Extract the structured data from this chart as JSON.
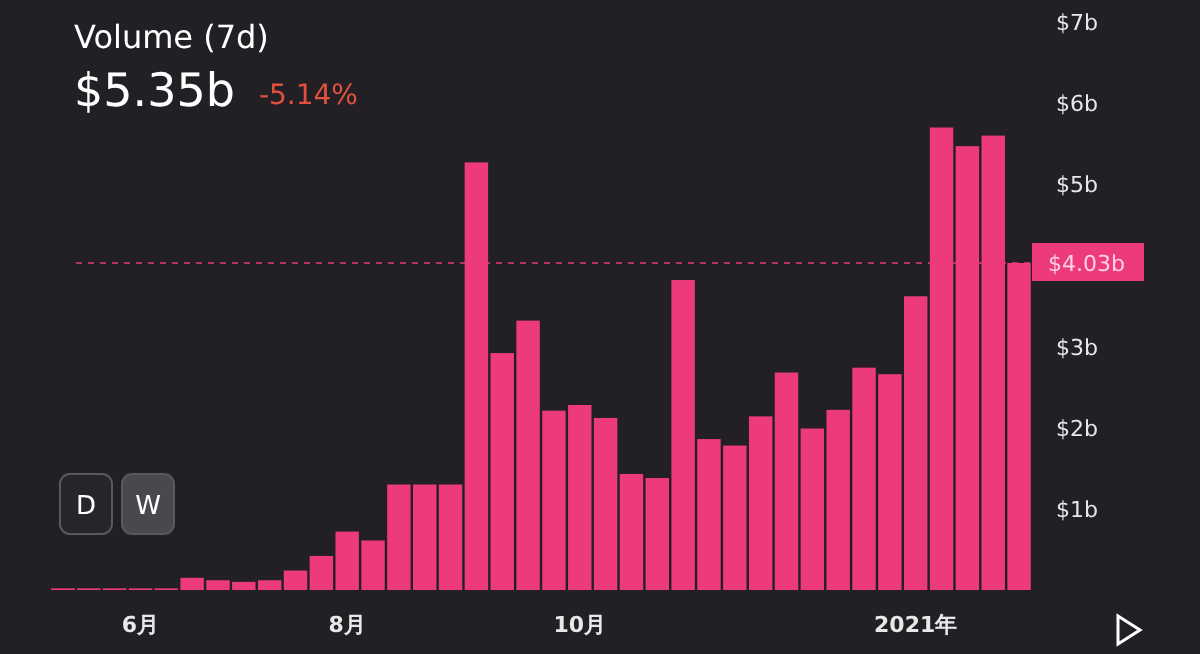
{
  "chart_data": {
    "type": "bar",
    "title": "Volume (7d)",
    "subtitle": "$5.35b",
    "annotations": [
      "-5.14%",
      "D",
      "W"
    ],
    "categories": [
      null,
      null,
      null,
      "6月",
      null,
      null,
      null,
      null,
      null,
      null,
      null,
      "8月",
      null,
      null,
      null,
      null,
      null,
      null,
      null,
      null,
      "10月",
      null,
      null,
      null,
      null,
      null,
      null,
      null,
      null,
      null,
      null,
      null,
      null,
      "2021年",
      null,
      null,
      null,
      null
    ],
    "values": [
      0.02,
      0.02,
      0.02,
      0.02,
      0.02,
      0.15,
      0.12,
      0.1,
      0.12,
      0.24,
      0.42,
      0.72,
      0.61,
      1.3,
      1.3,
      1.3,
      5.27,
      2.92,
      3.32,
      2.21,
      2.28,
      2.12,
      1.43,
      1.38,
      3.82,
      1.86,
      1.78,
      2.14,
      2.68,
      1.99,
      2.22,
      2.74,
      2.66,
      3.62,
      5.7,
      5.47,
      5.6,
      4.03
    ],
    "color": "#ec3a7c",
    "ylim": [
      0,
      7
    ],
    "yticks": [
      {
        "value": 1,
        "label": "$1b"
      },
      {
        "value": 2,
        "label": "$2b"
      },
      {
        "value": 3,
        "label": "$3b"
      },
      {
        "value": 5,
        "label": "$5b"
      },
      {
        "value": 6,
        "label": "$6b"
      },
      {
        "value": 7,
        "label": "$7b"
      }
    ],
    "ref_lines": [
      {
        "axis": "y",
        "value": 4.03,
        "label": "$4.03b",
        "color": "#ec3a7c",
        "line_style": "dashed"
      }
    ]
  }
}
